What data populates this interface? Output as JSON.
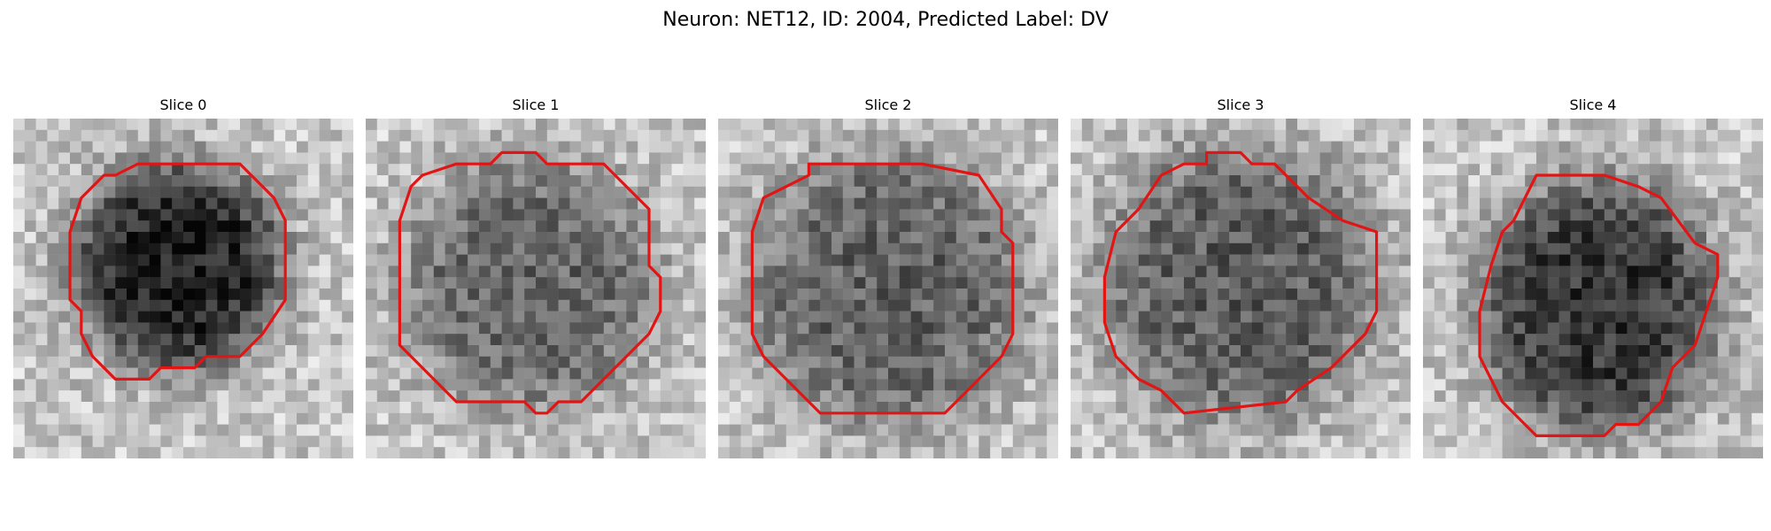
{
  "figure": {
    "title": "Neuron: NET12, ID: 2004, Predicted Label: DV"
  },
  "contour_color": "#e31414",
  "panels": [
    {
      "title": "Slice 0",
      "contour": [
        [
          11,
          4
        ],
        [
          20,
          4
        ],
        [
          23,
          7
        ],
        [
          24,
          9
        ],
        [
          24,
          16
        ],
        [
          22,
          19
        ],
        [
          20,
          21
        ],
        [
          17,
          21
        ],
        [
          16,
          22
        ],
        [
          13,
          22
        ],
        [
          12,
          23
        ],
        [
          9,
          23
        ],
        [
          7,
          21
        ],
        [
          6,
          19
        ],
        [
          6,
          17
        ],
        [
          5,
          16
        ],
        [
          5,
          10
        ],
        [
          6,
          7
        ],
        [
          8,
          5
        ],
        [
          9,
          5
        ]
      ],
      "blob": [
        14.5,
        13,
        9,
        9,
        0.66
      ]
    },
    {
      "title": "Slice 1",
      "contour": [
        [
          12,
          3
        ],
        [
          15,
          3
        ],
        [
          16,
          4
        ],
        [
          21,
          4
        ],
        [
          22,
          5
        ],
        [
          25,
          8
        ],
        [
          25,
          13
        ],
        [
          26,
          14
        ],
        [
          26,
          17
        ],
        [
          25,
          19
        ],
        [
          19,
          25
        ],
        [
          17,
          25
        ],
        [
          16,
          26
        ],
        [
          15,
          26
        ],
        [
          14,
          25
        ],
        [
          8,
          25
        ],
        [
          4,
          21
        ],
        [
          3,
          20
        ],
        [
          3,
          9
        ],
        [
          4,
          6
        ],
        [
          5,
          5
        ],
        [
          8,
          4
        ],
        [
          11,
          4
        ]
      ],
      "blob": [
        14.5,
        14.5,
        11,
        11,
        0.38
      ]
    },
    {
      "title": "Slice 2",
      "contour": [
        [
          8,
          4
        ],
        [
          18,
          4
        ],
        [
          23,
          5
        ],
        [
          25,
          8
        ],
        [
          25,
          10
        ],
        [
          26,
          11
        ],
        [
          26,
          19
        ],
        [
          25,
          21
        ],
        [
          23,
          23
        ],
        [
          22,
          24
        ],
        [
          20,
          26
        ],
        [
          9,
          26
        ],
        [
          6,
          23
        ],
        [
          4,
          21
        ],
        [
          3,
          19
        ],
        [
          3,
          10
        ],
        [
          4,
          7
        ],
        [
          6,
          6
        ],
        [
          8,
          5
        ]
      ],
      "blob": [
        15,
        15,
        12,
        12,
        0.4
      ]
    },
    {
      "title": "Slice 3",
      "contour": [
        [
          12,
          3
        ],
        [
          15,
          3
        ],
        [
          16,
          4
        ],
        [
          18,
          4
        ],
        [
          21,
          7
        ],
        [
          24,
          9
        ],
        [
          27,
          10
        ],
        [
          27,
          17
        ],
        [
          26,
          19
        ],
        [
          23,
          22
        ],
        [
          20,
          24
        ],
        [
          19,
          25
        ],
        [
          10,
          26
        ],
        [
          8,
          24
        ],
        [
          6,
          23
        ],
        [
          4,
          21
        ],
        [
          3,
          18
        ],
        [
          3,
          14
        ],
        [
          4,
          10
        ],
        [
          6,
          8
        ],
        [
          8,
          5
        ],
        [
          10,
          4
        ],
        [
          12,
          4
        ]
      ],
      "blob": [
        15,
        14.5,
        12,
        12,
        0.42
      ]
    },
    {
      "title": "Slice 4",
      "contour": [
        [
          10,
          5
        ],
        [
          16,
          5
        ],
        [
          19,
          6
        ],
        [
          21,
          7
        ],
        [
          24,
          11
        ],
        [
          26,
          12
        ],
        [
          26,
          14
        ],
        [
          25,
          17
        ],
        [
          24,
          20
        ],
        [
          22,
          22
        ],
        [
          21,
          25
        ],
        [
          19,
          27
        ],
        [
          17,
          27
        ],
        [
          16,
          28
        ],
        [
          10,
          28
        ],
        [
          9,
          27
        ],
        [
          7,
          25
        ],
        [
          6,
          23
        ],
        [
          5,
          21
        ],
        [
          5,
          17
        ],
        [
          6,
          13
        ],
        [
          7,
          10
        ],
        [
          8,
          9
        ],
        [
          9,
          7
        ]
      ],
      "blob": [
        15.5,
        16.5,
        10,
        11,
        0.58
      ]
    }
  ]
}
